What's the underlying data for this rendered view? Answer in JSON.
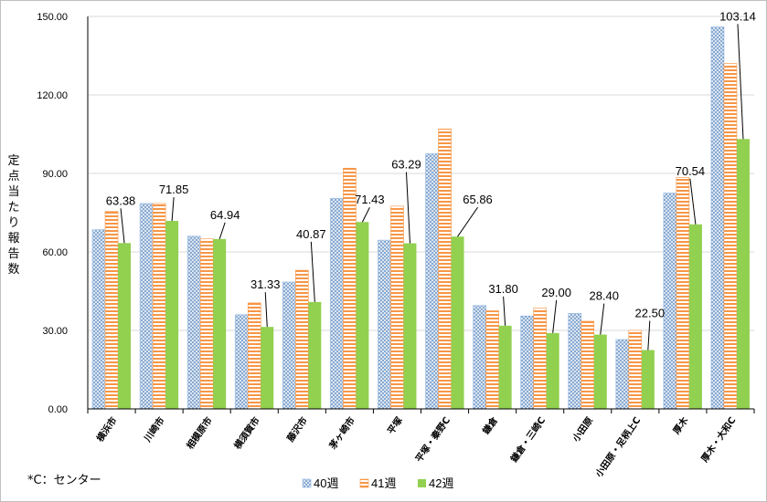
{
  "chart_data": {
    "type": "bar",
    "title": "",
    "ylabel": "定点当たり報告数",
    "xlabel": "",
    "ylim": [
      0,
      150
    ],
    "yticks": [
      "0.00",
      "30.00",
      "60.00",
      "90.00",
      "120.00",
      "150.00"
    ],
    "grid": true,
    "categories": [
      "横浜市",
      "川崎市",
      "相模原市",
      "横須賀市",
      "藤沢市",
      "茅ヶ崎市",
      "平塚",
      "平塚・秦野C",
      "鎌倉",
      "鎌倉・三崎C",
      "小田原",
      "小田原・足柄上C",
      "厚木",
      "厚木・大和C"
    ],
    "series": [
      {
        "name": "40週",
        "color": "#8eb4e3",
        "pattern": "dots",
        "values": [
          68.5,
          78.5,
          66.0,
          36.0,
          48.5,
          80.5,
          64.5,
          97.5,
          39.5,
          35.5,
          36.5,
          26.5,
          82.5,
          146.0
        ]
      },
      {
        "name": "41週",
        "color": "#f79646",
        "pattern": "stripes",
        "values": [
          75.5,
          78.5,
          65.0,
          40.5,
          53.0,
          92.0,
          77.5,
          107.0,
          37.5,
          38.5,
          33.5,
          30.0,
          88.5,
          132.0
        ]
      },
      {
        "name": "42週",
        "color": "#92d050",
        "pattern": "solid",
        "values": [
          63.38,
          71.85,
          64.94,
          31.33,
          40.87,
          71.43,
          63.29,
          65.86,
          31.8,
          29.0,
          28.4,
          22.5,
          70.54,
          103.14
        ]
      }
    ],
    "data_labels": [
      "63.38",
      "71.85",
      "64.94",
      "31.33",
      "40.87",
      "71.43",
      "63.29",
      "65.86",
      "31.80",
      "29.00",
      "28.40",
      "22.50",
      "70.54",
      "103.14"
    ],
    "legend_position": "bottom",
    "footnote": "*C：センター"
  }
}
